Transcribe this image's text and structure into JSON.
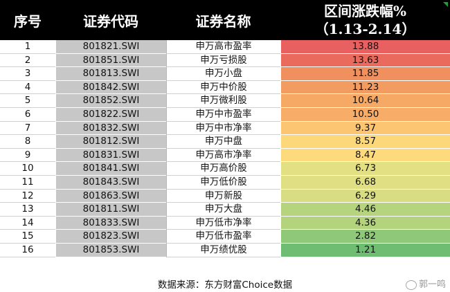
{
  "header": {
    "col_index": "序号",
    "col_code": "证券代码",
    "col_name": "证券名称",
    "col_change_line1": "区间涨跌幅%",
    "col_change_line2": "（1.13-2.14）"
  },
  "rows": [
    {
      "index": "1",
      "code": "801821.SWI",
      "name": "申万高市盈率",
      "change": "13.88",
      "color": "#e8605f"
    },
    {
      "index": "2",
      "code": "801851.SWI",
      "name": "申万亏损股",
      "change": "13.63",
      "color": "#ea6a5e"
    },
    {
      "index": "3",
      "code": "801813.SWI",
      "name": "申万小盘",
      "change": "11.85",
      "color": "#f0905f"
    },
    {
      "index": "4",
      "code": "801842.SWI",
      "name": "申万中价股",
      "change": "11.23",
      "color": "#f39c62"
    },
    {
      "index": "5",
      "code": "801852.SWI",
      "name": "申万微利股",
      "change": "10.64",
      "color": "#f6a865"
    },
    {
      "index": "6",
      "code": "801822.SWI",
      "name": "申万中市盈率",
      "change": "10.50",
      "color": "#f7ac67"
    },
    {
      "index": "7",
      "code": "801832.SWI",
      "name": "申万中市净率",
      "change": "9.37",
      "color": "#fbc572"
    },
    {
      "index": "8",
      "code": "801812.SWI",
      "name": "申万中盘",
      "change": "8.57",
      "color": "#fdd87b"
    },
    {
      "index": "9",
      "code": "801831.SWI",
      "name": "申万高市净率",
      "change": "8.47",
      "color": "#fdda7c"
    },
    {
      "index": "10",
      "code": "801841.SWI",
      "name": "申万高价股",
      "change": "6.73",
      "color": "#e3e084"
    },
    {
      "index": "11",
      "code": "801843.SWI",
      "name": "申万低价股",
      "change": "6.68",
      "color": "#e1df84"
    },
    {
      "index": "12",
      "code": "801863.SWI",
      "name": "申万新股",
      "change": "6.29",
      "color": "#d8dc82"
    },
    {
      "index": "13",
      "code": "801811.SWI",
      "name": "申万大盘",
      "change": "4.46",
      "color": "#b6d47d"
    },
    {
      "index": "14",
      "code": "801833.SWI",
      "name": "申万低市净率",
      "change": "4.36",
      "color": "#b3d37c"
    },
    {
      "index": "15",
      "code": "801823.SWI",
      "name": "申万低市盈率",
      "change": "2.82",
      "color": "#8fc878"
    },
    {
      "index": "16",
      "code": "801853.SWI",
      "name": "申万绩优股",
      "change": "1.21",
      "color": "#6ebd73"
    }
  ],
  "footer": {
    "source": "数据来源：东方财富Choice数据",
    "watermark": "郭一鸣"
  }
}
